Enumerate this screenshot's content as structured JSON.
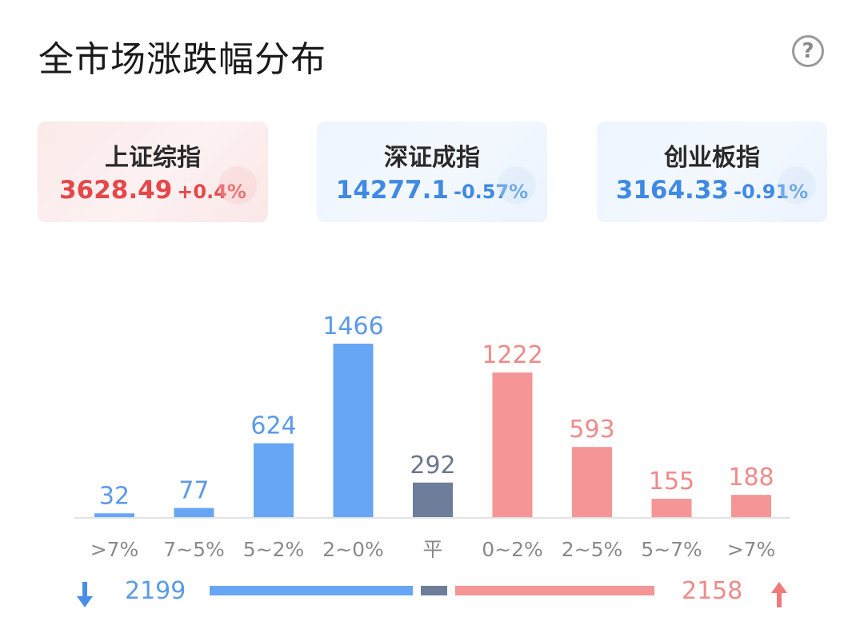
{
  "title": "全市场涨跌幅分布",
  "help_icon": "question-mark-circle-icon",
  "help_glyph": "?",
  "indices": [
    {
      "name": "上证综指",
      "value": "3628.49",
      "change": "+0.4%",
      "direction": "up"
    },
    {
      "name": "深证成指",
      "value": "14277.1",
      "change": "-0.57%",
      "direction": "down"
    },
    {
      "name": "创业板指",
      "value": "3164.33",
      "change": "-0.91%",
      "direction": "down"
    }
  ],
  "colors": {
    "down": "#66a6f5",
    "flat": "#6e7d9a",
    "up": "#f59595",
    "down_text": "#5b9ae8",
    "up_text": "#f08a8a",
    "flat_text": "#6b7790",
    "axis_text": "#8a8a8a"
  },
  "chart_data": {
    "type": "bar",
    "categories": [
      ">7%",
      "7~5%",
      "5~2%",
      "2~0%",
      "平",
      "0~2%",
      "2~5%",
      "5~7%",
      ">7%"
    ],
    "values": [
      32,
      77,
      624,
      1466,
      292,
      1222,
      593,
      155,
      188
    ],
    "directions": [
      "down",
      "down",
      "down",
      "down",
      "flat",
      "up",
      "up",
      "up",
      "up"
    ],
    "ylim": [
      0,
      1466
    ]
  },
  "summary": {
    "down_count": "2199",
    "up_count": "2158",
    "flat_count": 292,
    "down_icon": "arrow-down-icon",
    "up_icon": "arrow-up-icon"
  }
}
